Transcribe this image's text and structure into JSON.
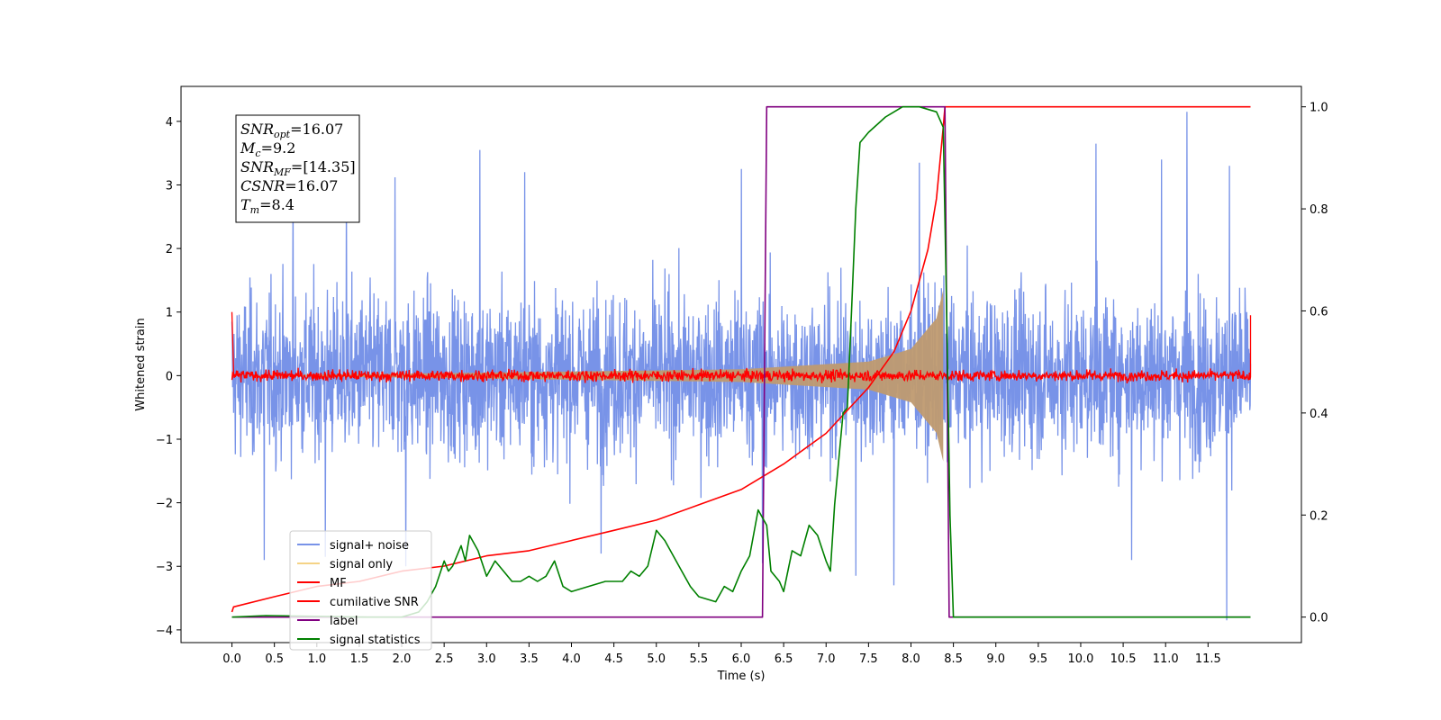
{
  "chart_data": {
    "type": "line",
    "xlabel": "Time (s)",
    "ylabel": "Whitened strain",
    "xlim": [
      -0.6,
      12.6
    ],
    "ylim": [
      -4.2,
      4.55
    ],
    "ylim_right": [
      -0.05,
      1.04
    ],
    "x_ticks": [
      0.0,
      0.5,
      1.0,
      1.5,
      2.0,
      2.5,
      3.0,
      3.5,
      4.0,
      4.5,
      5.0,
      5.5,
      6.0,
      6.5,
      7.0,
      7.5,
      8.0,
      8.5,
      9.0,
      9.5,
      10.0,
      10.5,
      11.0,
      11.5
    ],
    "x_tick_labels": [
      "0.0",
      "0.5",
      "1.0",
      "1.5",
      "2.0",
      "2.5",
      "3.0",
      "3.5",
      "4.0",
      "4.5",
      "5.0",
      "5.5",
      "6.0",
      "6.5",
      "7.0",
      "7.5",
      "8.0",
      "8.5",
      "9.0",
      "9.5",
      "10.0",
      "10.5",
      "11.0",
      "11.5"
    ],
    "y_ticks": [
      -4,
      -3,
      -2,
      -1,
      0,
      1,
      2,
      3,
      4
    ],
    "y_tick_labels": [
      "−4",
      "−3",
      "−2",
      "−1",
      "0",
      "1",
      "2",
      "3",
      "4"
    ],
    "y_right_ticks": [
      0.0,
      0.2,
      0.4,
      0.6,
      0.8,
      1.0
    ],
    "y_right_tick_labels": [
      "0.0",
      "0.2",
      "0.4",
      "0.6",
      "0.8",
      "1.0"
    ],
    "legend_placement": "lower-left",
    "annotation": {
      "lines": [
        {
          "name": "SNR",
          "sub": "opt",
          "value": "=16.07"
        },
        {
          "name": "M",
          "sub": "c",
          "value": "=9.2"
        },
        {
          "name": "SNR",
          "sub": "MF",
          "value": "=[14.35]"
        },
        {
          "name": "CSNR",
          "sub": "",
          "value": "=16.07"
        },
        {
          "name": "T",
          "sub": "m",
          "value": "=8.4"
        }
      ]
    },
    "series": [
      {
        "name": "signal+ noise",
        "color": "#7893e8",
        "axis": "left",
        "kind": "noise",
        "x_range": [
          0.0,
          12.0
        ],
        "envelope_typical": [
          -1.8,
          2.0
        ],
        "spikes": [
          {
            "x": 0.72,
            "y": 2.95
          },
          {
            "x": 1.35,
            "y": 3.05
          },
          {
            "x": 1.92,
            "y": 3.12
          },
          {
            "x": 2.92,
            "y": 3.55
          },
          {
            "x": 3.45,
            "y": 3.2
          },
          {
            "x": 6.0,
            "y": 3.25
          },
          {
            "x": 8.1,
            "y": 3.35
          },
          {
            "x": 10.18,
            "y": 3.65
          },
          {
            "x": 10.95,
            "y": 3.4
          },
          {
            "x": 11.25,
            "y": 4.15
          },
          {
            "x": 11.75,
            "y": 3.3
          },
          {
            "x": 0.38,
            "y": -2.9
          },
          {
            "x": 1.1,
            "y": -2.85
          },
          {
            "x": 2.05,
            "y": -3.0
          },
          {
            "x": 4.35,
            "y": -2.8
          },
          {
            "x": 6.25,
            "y": -2.95
          },
          {
            "x": 7.35,
            "y": -3.15
          },
          {
            "x": 7.8,
            "y": -3.3
          },
          {
            "x": 10.6,
            "y": -2.9
          },
          {
            "x": 11.72,
            "y": -3.85
          }
        ]
      },
      {
        "name": "signal only",
        "color": "#f5d386",
        "axis": "left",
        "kind": "chirp",
        "t_merge": 8.4,
        "amplitude_at": [
          {
            "x": 2.0,
            "y": 0.03
          },
          {
            "x": 6.0,
            "y": 0.1
          },
          {
            "x": 7.5,
            "y": 0.22
          },
          {
            "x": 8.0,
            "y": 0.42
          },
          {
            "x": 8.3,
            "y": 0.9
          },
          {
            "x": 8.38,
            "y": 1.35
          }
        ]
      },
      {
        "name": "MF",
        "color": "#ff0000",
        "axis": "left",
        "kind": "noise_small",
        "x_range": [
          0.0,
          12.0
        ],
        "typical_amplitude": 0.09,
        "edges": [
          {
            "x": 0.0,
            "y": 1.0
          },
          {
            "x": 12.0,
            "y": 0.95
          }
        ]
      },
      {
        "name": "cumilative SNR",
        "color": "#ff0000",
        "axis": "right",
        "kind": "line",
        "points": [
          {
            "x": 0.0,
            "y": 0.01
          },
          {
            "x": 0.02,
            "y": 0.02
          },
          {
            "x": 0.5,
            "y": 0.04
          },
          {
            "x": 1.0,
            "y": 0.06
          },
          {
            "x": 1.5,
            "y": 0.07
          },
          {
            "x": 2.0,
            "y": 0.09
          },
          {
            "x": 2.5,
            "y": 0.1
          },
          {
            "x": 3.0,
            "y": 0.12
          },
          {
            "x": 3.5,
            "y": 0.13
          },
          {
            "x": 4.0,
            "y": 0.15
          },
          {
            "x": 4.5,
            "y": 0.17
          },
          {
            "x": 5.0,
            "y": 0.19
          },
          {
            "x": 5.5,
            "y": 0.22
          },
          {
            "x": 6.0,
            "y": 0.25
          },
          {
            "x": 6.5,
            "y": 0.3
          },
          {
            "x": 7.0,
            "y": 0.36
          },
          {
            "x": 7.5,
            "y": 0.45
          },
          {
            "x": 7.8,
            "y": 0.52
          },
          {
            "x": 8.0,
            "y": 0.6
          },
          {
            "x": 8.2,
            "y": 0.72
          },
          {
            "x": 8.3,
            "y": 0.82
          },
          {
            "x": 8.38,
            "y": 0.96
          },
          {
            "x": 8.4,
            "y": 1.0
          },
          {
            "x": 12.0,
            "y": 1.0
          }
        ]
      },
      {
        "name": "label",
        "color": "#800080",
        "axis": "right",
        "kind": "line",
        "points": [
          {
            "x": 0.0,
            "y": 0.0
          },
          {
            "x": 6.25,
            "y": 0.0
          },
          {
            "x": 6.3,
            "y": 1.0
          },
          {
            "x": 8.4,
            "y": 1.0
          },
          {
            "x": 8.45,
            "y": 0.0
          },
          {
            "x": 12.0,
            "y": 0.0
          }
        ]
      },
      {
        "name": "signal statistics",
        "color": "#008000",
        "axis": "right",
        "kind": "line",
        "points": [
          {
            "x": 0.0,
            "y": 0.0
          },
          {
            "x": 0.4,
            "y": 0.003
          },
          {
            "x": 0.8,
            "y": 0.002
          },
          {
            "x": 1.2,
            "y": 0.001
          },
          {
            "x": 1.6,
            "y": 0.0
          },
          {
            "x": 2.0,
            "y": 0.0
          },
          {
            "x": 2.2,
            "y": 0.01
          },
          {
            "x": 2.3,
            "y": 0.03
          },
          {
            "x": 2.4,
            "y": 0.06
          },
          {
            "x": 2.5,
            "y": 0.11
          },
          {
            "x": 2.55,
            "y": 0.09
          },
          {
            "x": 2.6,
            "y": 0.1
          },
          {
            "x": 2.7,
            "y": 0.14
          },
          {
            "x": 2.75,
            "y": 0.11
          },
          {
            "x": 2.8,
            "y": 0.16
          },
          {
            "x": 2.9,
            "y": 0.13
          },
          {
            "x": 3.0,
            "y": 0.08
          },
          {
            "x": 3.1,
            "y": 0.11
          },
          {
            "x": 3.2,
            "y": 0.09
          },
          {
            "x": 3.3,
            "y": 0.07
          },
          {
            "x": 3.4,
            "y": 0.07
          },
          {
            "x": 3.5,
            "y": 0.08
          },
          {
            "x": 3.6,
            "y": 0.07
          },
          {
            "x": 3.7,
            "y": 0.08
          },
          {
            "x": 3.8,
            "y": 0.11
          },
          {
            "x": 3.9,
            "y": 0.06
          },
          {
            "x": 4.0,
            "y": 0.05
          },
          {
            "x": 4.2,
            "y": 0.06
          },
          {
            "x": 4.4,
            "y": 0.07
          },
          {
            "x": 4.6,
            "y": 0.07
          },
          {
            "x": 4.7,
            "y": 0.09
          },
          {
            "x": 4.8,
            "y": 0.08
          },
          {
            "x": 4.9,
            "y": 0.1
          },
          {
            "x": 5.0,
            "y": 0.17
          },
          {
            "x": 5.1,
            "y": 0.15
          },
          {
            "x": 5.2,
            "y": 0.12
          },
          {
            "x": 5.3,
            "y": 0.09
          },
          {
            "x": 5.4,
            "y": 0.06
          },
          {
            "x": 5.5,
            "y": 0.04
          },
          {
            "x": 5.7,
            "y": 0.03
          },
          {
            "x": 5.8,
            "y": 0.06
          },
          {
            "x": 5.9,
            "y": 0.05
          },
          {
            "x": 6.0,
            "y": 0.09
          },
          {
            "x": 6.1,
            "y": 0.12
          },
          {
            "x": 6.2,
            "y": 0.21
          },
          {
            "x": 6.3,
            "y": 0.18
          },
          {
            "x": 6.35,
            "y": 0.09
          },
          {
            "x": 6.45,
            "y": 0.07
          },
          {
            "x": 6.5,
            "y": 0.05
          },
          {
            "x": 6.6,
            "y": 0.13
          },
          {
            "x": 6.7,
            "y": 0.12
          },
          {
            "x": 6.8,
            "y": 0.18
          },
          {
            "x": 6.9,
            "y": 0.16
          },
          {
            "x": 7.0,
            "y": 0.11
          },
          {
            "x": 7.05,
            "y": 0.09
          },
          {
            "x": 7.1,
            "y": 0.22
          },
          {
            "x": 7.2,
            "y": 0.4
          },
          {
            "x": 7.25,
            "y": 0.41
          },
          {
            "x": 7.3,
            "y": 0.6
          },
          {
            "x": 7.35,
            "y": 0.8
          },
          {
            "x": 7.4,
            "y": 0.93
          },
          {
            "x": 7.5,
            "y": 0.95
          },
          {
            "x": 7.7,
            "y": 0.98
          },
          {
            "x": 7.9,
            "y": 1.0
          },
          {
            "x": 8.1,
            "y": 1.0
          },
          {
            "x": 8.3,
            "y": 0.99
          },
          {
            "x": 8.38,
            "y": 0.96
          },
          {
            "x": 8.42,
            "y": 0.6
          },
          {
            "x": 8.46,
            "y": 0.2
          },
          {
            "x": 8.5,
            "y": 0.0
          },
          {
            "x": 12.0,
            "y": 0.0
          }
        ]
      }
    ]
  }
}
